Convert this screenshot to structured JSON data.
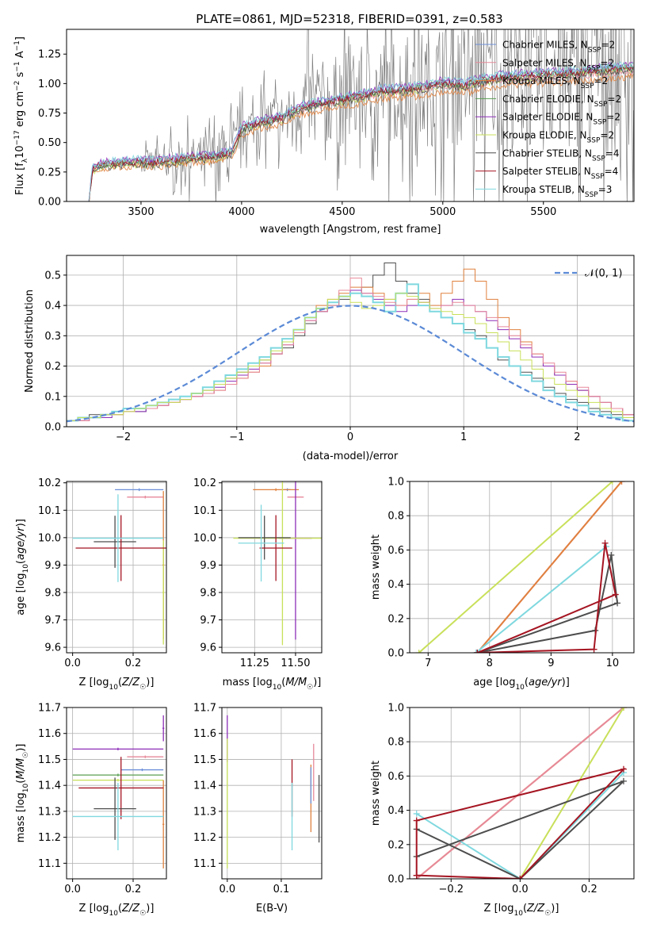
{
  "figure_title": "PLATE=0861, MJD=52318, FIBERID=0391, z=0.583",
  "colors": {
    "Chabrier MILES": "#6c8fd8",
    "Salpeter MILES": "#e7899a",
    "Kroupa MILES": "#e0813e",
    "Chabrier ELODIE": "#5a9e52",
    "Salpeter ELODIE": "#8d2fb8",
    "Kroupa ELODIE": "#c8e05a",
    "Chabrier STELIB": "#4d4d4d",
    "Salpeter STELIB": "#a51522",
    "Kroupa STELIB": "#7fd8df",
    "data": "#808080",
    "normal": "#5b8ad6"
  },
  "legend_spectrum": [
    {
      "model": "Chabrier MILES",
      "text": "Chabrier MILES, N",
      "sub": "SSP",
      "tail": "=2"
    },
    {
      "model": "Salpeter MILES",
      "text": "Salpeter MILES, N",
      "sub": "SSP",
      "tail": "=2"
    },
    {
      "model": "Kroupa MILES",
      "text": "Kroupa MILES, N",
      "sub": "SSP",
      "tail": "=2"
    },
    {
      "model": "Chabrier ELODIE",
      "text": "Chabrier ELODIE, N",
      "sub": "SSP",
      "tail": "=2"
    },
    {
      "model": "Salpeter ELODIE",
      "text": "Salpeter ELODIE, N",
      "sub": "SSP",
      "tail": "=2"
    },
    {
      "model": "Kroupa ELODIE",
      "text": "Kroupa ELODIE, N",
      "sub": "SSP",
      "tail": "=2"
    },
    {
      "model": "Chabrier STELIB",
      "text": "Chabrier STELIB, N",
      "sub": "SSP",
      "tail": "=4"
    },
    {
      "model": "Salpeter STELIB",
      "text": "Salpeter STELIB, N",
      "sub": "SSP",
      "tail": "=4"
    },
    {
      "model": "Kroupa STELIB",
      "text": "Kroupa STELIB, N",
      "sub": "SSP",
      "tail": "=3"
    }
  ],
  "chart_data": [
    {
      "type": "line",
      "id": "spectrum",
      "title": "PLATE=0861, MJD=52318, FIBERID=0391, z=0.583",
      "xlabel": "wavelength [Angstrom, rest frame]",
      "ylabel": "Flux [f_λ 10^-17 erg cm^-2 s^-1 A^-1]",
      "xlim": [
        3130,
        5950
      ],
      "ylim": [
        0,
        1.46
      ],
      "xticks": [
        3500,
        4000,
        4500,
        5000,
        5500
      ],
      "yticks": [
        0.0,
        0.25,
        0.5,
        0.75,
        1.0,
        1.25
      ],
      "grid": false,
      "legend_position": "top-right",
      "continuum": {
        "x": [
          3240,
          3260,
          3300,
          3400,
          3500,
          3550,
          3650,
          3750,
          3850,
          3950,
          4000,
          4100,
          4200,
          4300,
          4400,
          4500,
          4600,
          4700,
          4800,
          4900,
          5000,
          5100,
          5200,
          5300,
          5400,
          5500,
          5600,
          5700,
          5800,
          5950
        ],
        "y": [
          0.0,
          0.28,
          0.31,
          0.33,
          0.34,
          0.33,
          0.35,
          0.37,
          0.38,
          0.42,
          0.62,
          0.68,
          0.71,
          0.8,
          0.84,
          0.87,
          0.9,
          0.94,
          0.95,
          0.97,
          1.01,
          0.99,
          1.03,
          1.06,
          1.07,
          1.08,
          1.09,
          1.1,
          1.12,
          1.14
        ]
      },
      "data_noise_range": [
        3500,
        5950
      ]
    },
    {
      "type": "histogram",
      "id": "residuals",
      "xlabel": "(data-model)/error",
      "ylabel": "Normed distribution",
      "xlim": [
        -2.5,
        2.5
      ],
      "ylim": [
        0,
        0.565
      ],
      "xticks": [
        -2,
        -1,
        0,
        1,
        2
      ],
      "yticks": [
        0.0,
        0.1,
        0.2,
        0.3,
        0.4,
        0.5
      ],
      "grid": true,
      "legend": [
        {
          "label": "𝒩(0, 1)",
          "style": "dashed"
        }
      ],
      "legend_position": "top-right",
      "bin_width": 0.1,
      "histogram_series": {
        "Chabrier STELIB": [
          0.02,
          0.03,
          0.04,
          0.04,
          0.05,
          0.06,
          0.05,
          0.07,
          0.08,
          0.09,
          0.1,
          0.11,
          0.12,
          0.14,
          0.16,
          0.18,
          0.2,
          0.22,
          0.24,
          0.26,
          0.3,
          0.34,
          0.38,
          0.4,
          0.42,
          0.44,
          0.46,
          0.5,
          0.54,
          0.48,
          0.44,
          0.42,
          0.38,
          0.36,
          0.34,
          0.32,
          0.3,
          0.26,
          0.22,
          0.2,
          0.18,
          0.16,
          0.13,
          0.11,
          0.09,
          0.08,
          0.06,
          0.05,
          0.04,
          0.03
        ],
        "Kroupa MILES": [
          0.02,
          0.02,
          0.03,
          0.04,
          0.04,
          0.05,
          0.06,
          0.06,
          0.07,
          0.08,
          0.09,
          0.1,
          0.11,
          0.12,
          0.14,
          0.16,
          0.18,
          0.2,
          0.24,
          0.28,
          0.32,
          0.36,
          0.4,
          0.42,
          0.44,
          0.46,
          0.46,
          0.44,
          0.42,
          0.4,
          0.42,
          0.44,
          0.4,
          0.44,
          0.48,
          0.52,
          0.48,
          0.42,
          0.36,
          0.32,
          0.28,
          0.24,
          0.2,
          0.17,
          0.15,
          0.12,
          0.1,
          0.08,
          0.06,
          0.04
        ],
        "Salpeter ELODIE": [
          0.02,
          0.02,
          0.03,
          0.03,
          0.04,
          0.05,
          0.05,
          0.06,
          0.07,
          0.08,
          0.09,
          0.1,
          0.11,
          0.13,
          0.15,
          0.17,
          0.19,
          0.21,
          0.24,
          0.27,
          0.31,
          0.35,
          0.38,
          0.41,
          0.43,
          0.45,
          0.44,
          0.42,
          0.4,
          0.38,
          0.4,
          0.41,
          0.38,
          0.4,
          0.42,
          0.4,
          0.38,
          0.35,
          0.32,
          0.29,
          0.26,
          0.23,
          0.2,
          0.17,
          0.14,
          0.12,
          0.1,
          0.08,
          0.06,
          0.04
        ],
        "Kroupa STELIB": [
          0.02,
          0.03,
          0.03,
          0.04,
          0.05,
          0.06,
          0.06,
          0.07,
          0.08,
          0.09,
          0.1,
          0.11,
          0.13,
          0.15,
          0.17,
          0.19,
          0.21,
          0.23,
          0.26,
          0.29,
          0.32,
          0.36,
          0.39,
          0.41,
          0.43,
          0.44,
          0.43,
          0.41,
          0.38,
          0.44,
          0.47,
          0.4,
          0.38,
          0.36,
          0.34,
          0.31,
          0.29,
          0.26,
          0.23,
          0.2,
          0.17,
          0.15,
          0.12,
          0.1,
          0.08,
          0.07,
          0.05,
          0.04,
          0.03,
          0.02
        ],
        "Salpeter MILES": [
          0.02,
          0.02,
          0.03,
          0.04,
          0.04,
          0.05,
          0.06,
          0.06,
          0.07,
          0.08,
          0.09,
          0.1,
          0.11,
          0.12,
          0.14,
          0.16,
          0.18,
          0.21,
          0.24,
          0.27,
          0.31,
          0.35,
          0.38,
          0.4,
          0.45,
          0.49,
          0.44,
          0.43,
          0.41,
          0.4,
          0.42,
          0.41,
          0.39,
          0.4,
          0.41,
          0.4,
          0.38,
          0.36,
          0.33,
          0.3,
          0.27,
          0.24,
          0.21,
          0.18,
          0.15,
          0.13,
          0.1,
          0.08,
          0.06,
          0.04
        ],
        "Kroupa ELODIE": [
          0.02,
          0.03,
          0.03,
          0.04,
          0.04,
          0.05,
          0.06,
          0.07,
          0.08,
          0.08,
          0.09,
          0.11,
          0.12,
          0.14,
          0.16,
          0.18,
          0.2,
          0.22,
          0.25,
          0.28,
          0.32,
          0.36,
          0.39,
          0.42,
          0.43,
          0.41,
          0.39,
          0.4,
          0.42,
          0.44,
          0.43,
          0.41,
          0.39,
          0.38,
          0.37,
          0.36,
          0.34,
          0.31,
          0.28,
          0.25,
          0.22,
          0.19,
          0.16,
          0.14,
          0.12,
          0.1,
          0.08,
          0.06,
          0.05,
          0.03
        ]
      },
      "normal_curve": {
        "mean": 0,
        "sigma": 1
      }
    },
    {
      "type": "scatter",
      "id": "z-age",
      "xlabel": "Z [log10(Z/Z☉)]",
      "ylabel": "age [log10(age/yr)]",
      "xlim": [
        -0.02,
        0.31
      ],
      "ylim": [
        9.58,
        10.205
      ],
      "xticks": [
        0.0,
        0.2
      ],
      "yticks": [
        9.6,
        9.7,
        9.8,
        9.9,
        10.0,
        10.1,
        10.2
      ],
      "grid": true,
      "errorbars": [
        {
          "model": "Chabrier MILES",
          "x": 0.22,
          "xerr": 0.08,
          "y": 10.175,
          "yerr": 0.005
        },
        {
          "model": "Salpeter MILES",
          "x": 0.24,
          "xerr": 0.06,
          "y": 10.148,
          "yerr": 0.005
        },
        {
          "model": "Kroupa MILES",
          "x": 0.3,
          "xerr": 0.003,
          "y": 9.9,
          "yerr": 0.27
        },
        {
          "model": "Kroupa ELODIE",
          "x": 0.3,
          "xerr": 0.003,
          "y": 9.8,
          "yerr": 0.19
        },
        {
          "model": "Chabrier STELIB",
          "x": 0.14,
          "xerr": 0.07,
          "y": 9.985,
          "yerr": 0.095
        },
        {
          "model": "Salpeter STELIB",
          "x": 0.16,
          "xerr": 0.15,
          "y": 9.962,
          "yerr": 0.12
        },
        {
          "model": "Kroupa STELIB",
          "x": 0.15,
          "xerr": 0.15,
          "y": 9.998,
          "yerr": 0.16
        }
      ]
    },
    {
      "type": "scatter",
      "id": "mass-age",
      "xlabel": "mass [log10(M/M☉)]",
      "ylabel": "",
      "xlim": [
        11.05,
        11.66
      ],
      "ylim": [
        9.58,
        10.205
      ],
      "xticks": [
        11.25,
        11.5
      ],
      "yticks": [
        9.6,
        9.7,
        9.8,
        9.9,
        10.0,
        10.1,
        10.2
      ],
      "grid": true,
      "errorbars": [
        {
          "model": "Chabrier MILES",
          "x": 11.45,
          "xerr": 0.02,
          "y": 10.175,
          "yerr": 0.005
        },
        {
          "model": "Salpeter MILES",
          "x": 11.5,
          "xerr": 0.05,
          "y": 10.148,
          "yerr": 0.005
        },
        {
          "model": "Kroupa MILES",
          "x": 11.38,
          "xerr": 0.14,
          "y": 10.175,
          "yerr": 0.005
        },
        {
          "model": "Salpeter ELODIE",
          "x": 11.5,
          "xerr": 0.1,
          "y": 9.998,
          "yerr": 0.37
        },
        {
          "model": "Kroupa ELODIE",
          "x": 11.42,
          "xerr": 0.3,
          "y": 9.998,
          "yerr": 0.39
        },
        {
          "model": "Chabrier STELIB",
          "x": 11.31,
          "xerr": 0.16,
          "y": 10.0,
          "yerr": 0.08
        },
        {
          "model": "Salpeter STELIB",
          "x": 11.38,
          "xerr": 0.1,
          "y": 9.962,
          "yerr": 0.12
        },
        {
          "model": "Kroupa STELIB",
          "x": 11.29,
          "xerr": 0.14,
          "y": 9.98,
          "yerr": 0.14
        }
      ]
    },
    {
      "type": "line",
      "id": "age-weight",
      "xlabel": "age [log10(age/yr)]",
      "ylabel": "mass weight",
      "xlim": [
        6.7,
        10.35
      ],
      "ylim": [
        0,
        1.0
      ],
      "xticks": [
        7,
        8,
        9,
        10
      ],
      "yticks": [
        0.0,
        0.2,
        0.4,
        0.6,
        0.8,
        1.0
      ],
      "grid": true,
      "series": [
        {
          "model": "Kroupa ELODIE",
          "x": [
            6.85,
            10.0
          ],
          "y": [
            0.0,
            1.0
          ]
        },
        {
          "model": "Salpeter MILES",
          "x": [
            7.8,
            10.15
          ],
          "y": [
            0.0,
            1.0
          ]
        },
        {
          "model": "Kroupa MILES",
          "x": [
            7.8,
            10.15
          ],
          "y": [
            0.0,
            1.0
          ]
        },
        {
          "model": "Kroupa STELIB",
          "x": [
            7.78,
            9.9
          ],
          "y": [
            0.0,
            0.62
          ]
        },
        {
          "model": "Chabrier STELIB",
          "x": [
            7.8,
            9.72,
            9.98,
            10.08,
            7.8
          ],
          "y": [
            0.0,
            0.13,
            0.57,
            0.29,
            0.0
          ]
        },
        {
          "model": "Salpeter STELIB",
          "x": [
            7.8,
            9.7,
            9.88,
            10.05,
            7.8
          ],
          "y": [
            0.0,
            0.02,
            0.64,
            0.34,
            0.0
          ]
        }
      ]
    },
    {
      "type": "scatter",
      "id": "z-mass",
      "xlabel": "Z [log10(Z/Z☉)]",
      "ylabel": "mass [log10(M/M☉)]",
      "xlim": [
        -0.02,
        0.31
      ],
      "ylim": [
        11.04,
        11.7
      ],
      "xticks": [
        0.0,
        0.2
      ],
      "yticks": [
        11.1,
        11.2,
        11.3,
        11.4,
        11.5,
        11.6,
        11.7
      ],
      "grid": true,
      "errorbars": [
        {
          "model": "Salpeter ELODIE",
          "x": 0.15,
          "xerr": 0.15,
          "y": 11.54,
          "yerr": 0.005
        },
        {
          "model": "Salpeter ELODIE",
          "x": 0.3,
          "xerr": 0.003,
          "y": 11.62,
          "yerr": 0.05
        },
        {
          "model": "Salpeter MILES",
          "x": 0.24,
          "xerr": 0.06,
          "y": 11.51,
          "yerr": 0.005
        },
        {
          "model": "Chabrier MILES",
          "x": 0.23,
          "xerr": 0.07,
          "y": 11.46,
          "yerr": 0.005
        },
        {
          "model": "Chabrier ELODIE",
          "x": 0.15,
          "xerr": 0.15,
          "y": 11.44,
          "yerr": 0.005
        },
        {
          "model": "Kroupa ELODIE",
          "x": 0.15,
          "xerr": 0.15,
          "y": 11.42,
          "yerr": 0.005
        },
        {
          "model": "Kroupa MILES",
          "x": 0.3,
          "xerr": 0.003,
          "y": 11.25,
          "yerr": 0.17
        },
        {
          "model": "Salpeter STELIB",
          "x": 0.16,
          "xerr": 0.14,
          "y": 11.39,
          "yerr": 0.12
        },
        {
          "model": "Chabrier STELIB",
          "x": 0.14,
          "xerr": 0.07,
          "y": 11.31,
          "yerr": 0.12
        },
        {
          "model": "Kroupa STELIB",
          "x": 0.15,
          "xerr": 0.15,
          "y": 11.28,
          "yerr": 0.13
        }
      ]
    },
    {
      "type": "scatter",
      "id": "ebv-mass",
      "xlabel": "E(B-V)",
      "ylabel": "",
      "xlim": [
        -0.01,
        0.175
      ],
      "ylim": [
        11.04,
        11.7
      ],
      "xticks": [
        0.0,
        0.1
      ],
      "yticks": [
        11.1,
        11.2,
        11.3,
        11.4,
        11.5,
        11.6,
        11.7
      ],
      "grid": true,
      "errorbars": [
        {
          "model": "Salpeter ELODIE",
          "x": 0.0,
          "xerr": 0.0,
          "y": 11.58,
          "yerr": 0.09
        },
        {
          "model": "Kroupa ELODIE",
          "x": 0.0,
          "xerr": 0.0,
          "y": 11.33,
          "yerr": 0.25
        },
        {
          "model": "Salpeter STELIB",
          "x": 0.12,
          "xerr": 0.0,
          "y": 11.39,
          "yerr": 0.11
        },
        {
          "model": "Kroupa STELIB",
          "x": 0.12,
          "xerr": 0.0,
          "y": 11.28,
          "yerr": 0.13
        },
        {
          "model": "Salpeter MILES",
          "x": 0.16,
          "xerr": 0.0,
          "y": 11.45,
          "yerr": 0.11
        },
        {
          "model": "Kroupa MILES",
          "x": 0.155,
          "xerr": 0.0,
          "y": 11.35,
          "yerr": 0.13
        },
        {
          "model": "Chabrier MILES",
          "x": 0.155,
          "xerr": 0.0,
          "y": 11.4,
          "yerr": 0.07
        },
        {
          "model": "Chabrier STELIB",
          "x": 0.17,
          "xerr": 0.0,
          "y": 11.31,
          "yerr": 0.13
        }
      ]
    },
    {
      "type": "line",
      "id": "z-weight",
      "xlabel": "Z [log10(Z/Z☉)]",
      "ylabel": "mass weight",
      "xlim": [
        -0.32,
        0.33
      ],
      "ylim": [
        0,
        1.0
      ],
      "xticks": [
        -0.2,
        0.0,
        0.2
      ],
      "yticks": [
        0.0,
        0.2,
        0.4,
        0.6,
        0.8,
        1.0
      ],
      "grid": true,
      "series": [
        {
          "model": "Kroupa MILES",
          "x": [
            -0.3,
            0.3
          ],
          "y": [
            0.0,
            1.0
          ]
        },
        {
          "model": "Salpeter MILES",
          "x": [
            -0.3,
            0.3
          ],
          "y": [
            0.0,
            1.0
          ]
        },
        {
          "model": "Kroupa ELODIE",
          "x": [
            0.0,
            0.3
          ],
          "y": [
            0.0,
            1.0
          ]
        },
        {
          "model": "Kroupa STELIB",
          "x": [
            -0.3,
            0.0,
            0.3
          ],
          "y": [
            0.38,
            0.0,
            0.62
          ]
        },
        {
          "model": "Chabrier STELIB",
          "x": [
            -0.3,
            0.0,
            0.3,
            -0.3
          ],
          "y": [
            0.29,
            0.0,
            0.57,
            0.13
          ]
        },
        {
          "model": "Salpeter STELIB",
          "x": [
            -0.3,
            0.0,
            0.3,
            -0.3,
            -0.3
          ],
          "y": [
            0.02,
            0.0,
            0.64,
            0.34,
            0.02
          ]
        }
      ]
    }
  ]
}
